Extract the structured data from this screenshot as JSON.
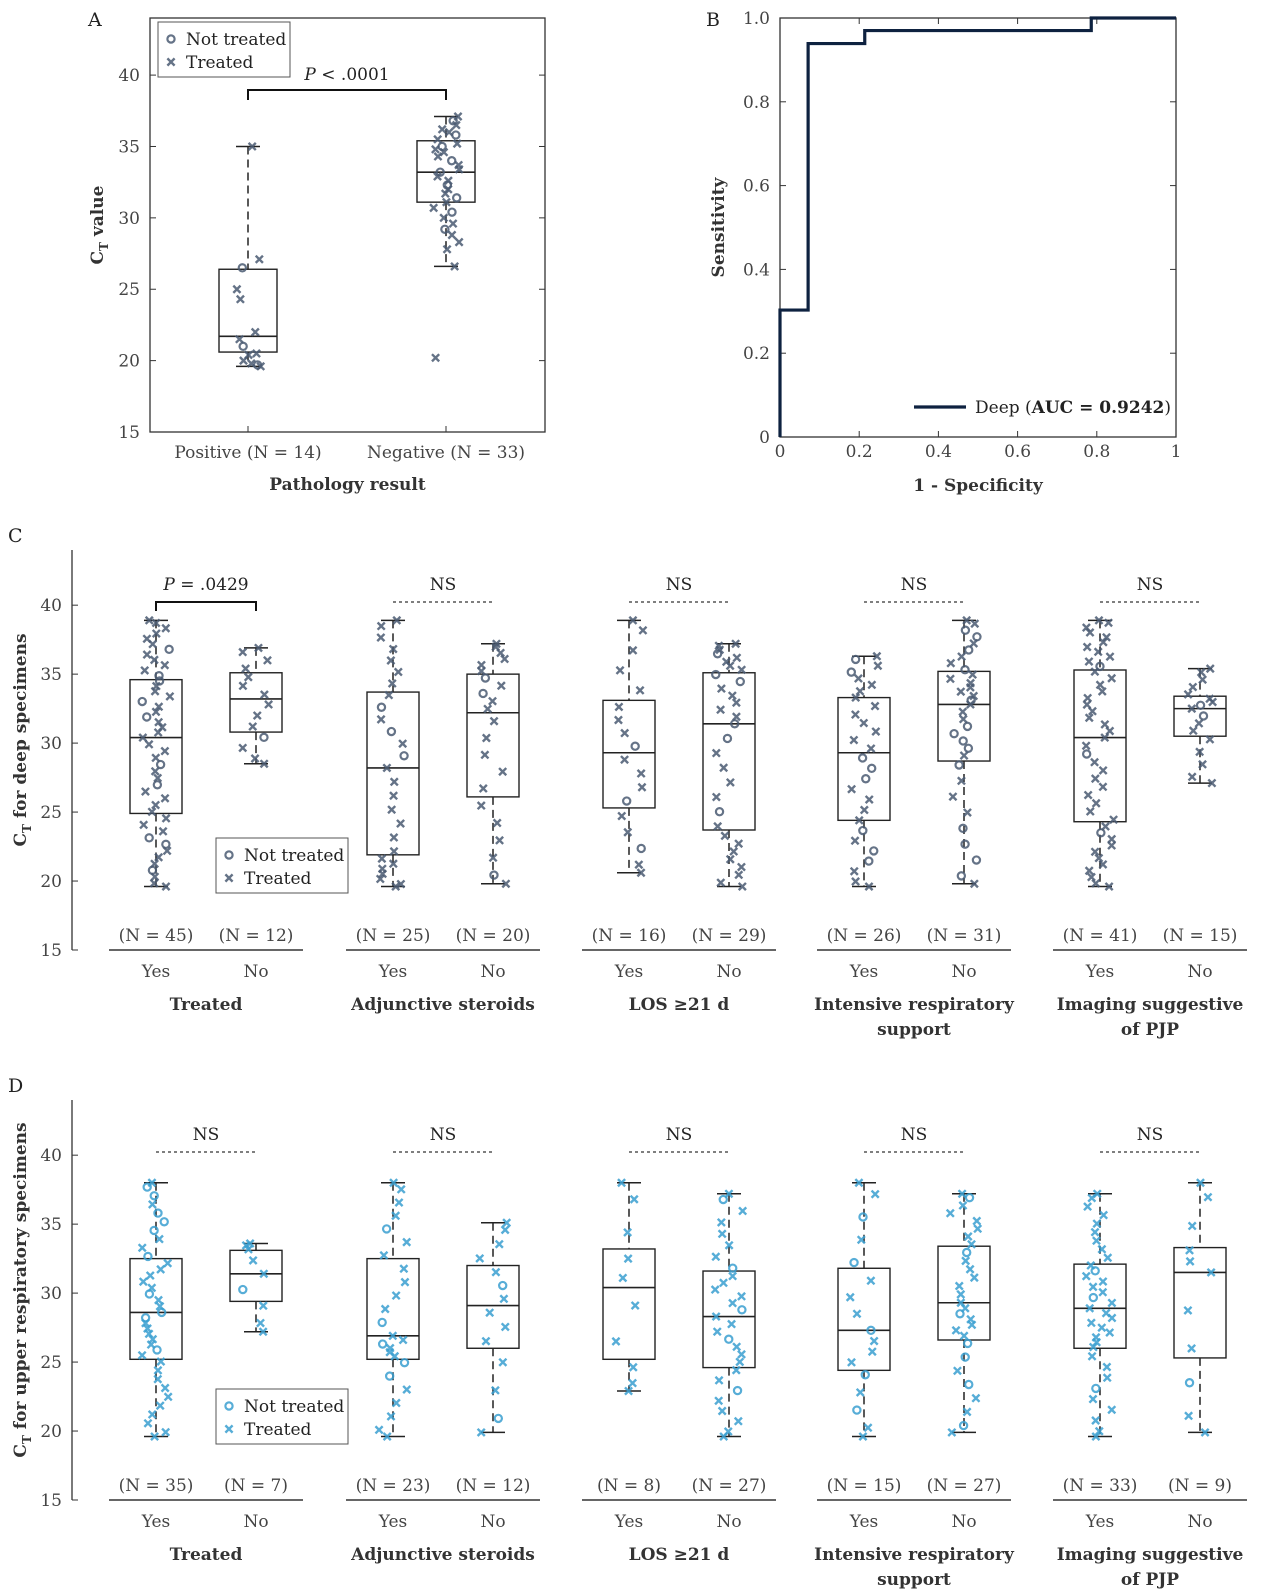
{
  "colors": {
    "dark": "#2d3f5a",
    "marker_dark": "#4a5a72",
    "marker_blue": "#3a9fd0",
    "roc": "#0e2240",
    "axis": "#333333"
  },
  "legend": {
    "not_treated": "Not treated",
    "treated": "Treated"
  },
  "chart_data": [
    {
      "panel": "A",
      "type": "box",
      "ylabel_main": "C",
      "ylabel_sub": "T",
      "ylabel_rest": " value",
      "xlabel": "Pathology result",
      "ylim": [
        15,
        44
      ],
      "yticks": [
        15,
        20,
        25,
        30,
        35,
        40
      ],
      "categories": [
        "Positive (N = 14)",
        "Negative (N = 33)"
      ],
      "boxes": [
        {
          "min": 19.6,
          "q1": 20.6,
          "median": 21.7,
          "q3": 26.4,
          "max": 35.0,
          "points": [
            {
              "y": 35.0,
              "m": "x"
            },
            {
              "y": 27.1,
              "m": "x"
            },
            {
              "y": 26.5,
              "m": "o"
            },
            {
              "y": 25.0,
              "m": "x"
            },
            {
              "y": 24.3,
              "m": "x"
            },
            {
              "y": 22.0,
              "m": "x"
            },
            {
              "y": 21.5,
              "m": "x"
            },
            {
              "y": 21.0,
              "m": "o"
            },
            {
              "y": 20.5,
              "m": "x"
            },
            {
              "y": 20.0,
              "m": "x"
            },
            {
              "y": 19.8,
              "m": "x"
            },
            {
              "y": 19.7,
              "m": "o"
            },
            {
              "y": 19.6,
              "m": "x"
            },
            {
              "y": 20.4,
              "m": "x"
            }
          ]
        },
        {
          "min": 26.6,
          "q1": 31.1,
          "median": 33.2,
          "q3": 35.4,
          "max": 37.1,
          "outliers": [
            20.2
          ],
          "points": [
            {
              "y": 37.1,
              "m": "x"
            },
            {
              "y": 36.8,
              "m": "o"
            },
            {
              "y": 36.5,
              "m": "x"
            },
            {
              "y": 36.0,
              "m": "x"
            },
            {
              "y": 35.8,
              "m": "o"
            },
            {
              "y": 35.5,
              "m": "x"
            },
            {
              "y": 35.2,
              "m": "x"
            },
            {
              "y": 35.0,
              "m": "o"
            },
            {
              "y": 34.6,
              "m": "x"
            },
            {
              "y": 34.3,
              "m": "x"
            },
            {
              "y": 34.0,
              "m": "o"
            },
            {
              "y": 33.7,
              "m": "x"
            },
            {
              "y": 33.4,
              "m": "x"
            },
            {
              "y": 33.2,
              "m": "o"
            },
            {
              "y": 32.9,
              "m": "x"
            },
            {
              "y": 32.6,
              "m": "x"
            },
            {
              "y": 32.3,
              "m": "o"
            },
            {
              "y": 32.0,
              "m": "x"
            },
            {
              "y": 31.7,
              "m": "x"
            },
            {
              "y": 31.4,
              "m": "o"
            },
            {
              "y": 31.1,
              "m": "x"
            },
            {
              "y": 30.7,
              "m": "x"
            },
            {
              "y": 30.4,
              "m": "o"
            },
            {
              "y": 30.0,
              "m": "x"
            },
            {
              "y": 29.6,
              "m": "x"
            },
            {
              "y": 29.2,
              "m": "o"
            },
            {
              "y": 28.8,
              "m": "x"
            },
            {
              "y": 28.3,
              "m": "x"
            },
            {
              "y": 27.8,
              "m": "x"
            },
            {
              "y": 26.6,
              "m": "x"
            },
            {
              "y": 20.2,
              "m": "x"
            },
            {
              "y": 36.2,
              "m": "x"
            },
            {
              "y": 34.8,
              "m": "x"
            }
          ]
        }
      ],
      "sig": {
        "label_italic": "P",
        "label_rest": " < .0001"
      }
    },
    {
      "panel": "B",
      "type": "line",
      "title_letter": "B",
      "xlabel": "1 - Specificity",
      "ylabel": "Sensitivity",
      "xlim": [
        0,
        1
      ],
      "ylim": [
        0,
        1
      ],
      "xticks": [
        0,
        0.2,
        0.4,
        0.6,
        0.8,
        1
      ],
      "xtick_labels": [
        "0",
        "0.2",
        "0.4",
        "0.6",
        "0.8",
        "1"
      ],
      "yticks": [
        0,
        0.2,
        0.4,
        0.6,
        0.8,
        1.0
      ],
      "ytick_labels": [
        "0",
        "0.2",
        "0.4",
        "0.6",
        "0.8",
        "1.0"
      ],
      "x": [
        0,
        0,
        0.071,
        0.071,
        0.214,
        0.214,
        0.786,
        0.786,
        1.0
      ],
      "y": [
        0,
        0.303,
        0.303,
        0.939,
        0.939,
        0.97,
        0.97,
        1.0,
        1.0
      ],
      "legend_name": "Deep",
      "legend_auc": "AUC = 0.9242"
    },
    {
      "panel": "C",
      "type": "box",
      "ylabel_main": "C",
      "ylabel_sub": "T",
      "ylabel_rest": " for deep specimens",
      "ylim": [
        15,
        44
      ],
      "yticks": [
        15,
        20,
        25,
        30,
        35,
        40
      ],
      "groups": [
        {
          "label": [
            "Treated"
          ],
          "sig": "P = .0429",
          "sig_italic": true,
          "boxes": [
            {
              "cat": "Yes",
              "n": "(N = 45)",
              "min": 19.6,
              "q1": 24.9,
              "median": 30.4,
              "q3": 34.6,
              "max": 38.9
            },
            {
              "cat": "No",
              "n": "(N = 12)",
              "min": 28.5,
              "q1": 30.8,
              "median": 33.2,
              "q3": 35.1,
              "max": 36.9
            }
          ]
        },
        {
          "label": [
            "Adjunctive steroids"
          ],
          "sig": "NS",
          "boxes": [
            {
              "cat": "Yes",
              "n": "(N = 25)",
              "min": 19.6,
              "q1": 21.9,
              "median": 28.2,
              "q3": 33.7,
              "max": 38.9
            },
            {
              "cat": "No",
              "n": "(N = 20)",
              "min": 19.8,
              "q1": 26.1,
              "median": 32.2,
              "q3": 35.0,
              "max": 37.2
            }
          ]
        },
        {
          "label": [
            "LOS ≥21 d"
          ],
          "sig": "NS",
          "boxes": [
            {
              "cat": "Yes",
              "n": "(N = 16)",
              "min": 20.6,
              "q1": 25.3,
              "median": 29.3,
              "q3": 33.1,
              "max": 38.9
            },
            {
              "cat": "No",
              "n": "(N = 29)",
              "min": 19.6,
              "q1": 23.7,
              "median": 31.4,
              "q3": 35.1,
              "max": 37.2
            }
          ]
        },
        {
          "label": [
            "Intensive respiratory",
            "support"
          ],
          "sig": "NS",
          "boxes": [
            {
              "cat": "Yes",
              "n": "(N = 26)",
              "min": 19.6,
              "q1": 24.4,
              "median": 29.3,
              "q3": 33.3,
              "max": 36.3
            },
            {
              "cat": "No",
              "n": "(N = 31)",
              "min": 19.8,
              "q1": 28.7,
              "median": 32.8,
              "q3": 35.2,
              "max": 38.9
            }
          ]
        },
        {
          "label": [
            "Imaging suggestive",
            "of PJP"
          ],
          "sig": "NS",
          "boxes": [
            {
              "cat": "Yes",
              "n": "(N = 41)",
              "min": 19.6,
              "q1": 24.3,
              "median": 30.4,
              "q3": 35.3,
              "max": 38.9
            },
            {
              "cat": "No",
              "n": "(N = 15)",
              "min": 27.1,
              "q1": 30.5,
              "median": 32.5,
              "q3": 33.4,
              "max": 35.4
            }
          ]
        }
      ]
    },
    {
      "panel": "D",
      "type": "box",
      "ylabel_main": "C",
      "ylabel_sub": "T",
      "ylabel_rest": "  for upper respiratory specimens",
      "ylim": [
        15,
        44
      ],
      "yticks": [
        15,
        20,
        25,
        30,
        35,
        40
      ],
      "groups": [
        {
          "label": [
            "Treated"
          ],
          "sig": "NS",
          "boxes": [
            {
              "cat": "Yes",
              "n": "(N = 35)",
              "min": 19.6,
              "q1": 25.2,
              "median": 28.6,
              "q3": 32.5,
              "max": 38.0
            },
            {
              "cat": "No",
              "n": "(N = 7)",
              "min": 27.2,
              "q1": 29.4,
              "median": 31.4,
              "q3": 33.1,
              "max": 33.6
            }
          ]
        },
        {
          "label": [
            "Adjunctive steroids"
          ],
          "sig": "NS",
          "boxes": [
            {
              "cat": "Yes",
              "n": "(N = 23)",
              "min": 19.6,
              "q1": 25.2,
              "median": 26.9,
              "q3": 32.5,
              "max": 38.0
            },
            {
              "cat": "No",
              "n": "(N = 12)",
              "min": 19.9,
              "q1": 26.0,
              "median": 29.1,
              "q3": 32.0,
              "max": 35.1
            }
          ]
        },
        {
          "label": [
            "LOS ≥21 d"
          ],
          "sig": "NS",
          "boxes": [
            {
              "cat": "Yes",
              "n": "(N = 8)",
              "min": 22.9,
              "q1": 25.2,
              "median": 30.4,
              "q3": 33.2,
              "max": 38.0
            },
            {
              "cat": "No",
              "n": "(N = 27)",
              "min": 19.6,
              "q1": 24.6,
              "median": 28.3,
              "q3": 31.6,
              "max": 37.2
            }
          ]
        },
        {
          "label": [
            "Intensive respiratory",
            "support"
          ],
          "sig": "NS",
          "boxes": [
            {
              "cat": "Yes",
              "n": "(N = 15)",
              "min": 19.6,
              "q1": 24.4,
              "median": 27.3,
              "q3": 31.8,
              "max": 38.0
            },
            {
              "cat": "No",
              "n": "(N = 27)",
              "min": 19.9,
              "q1": 26.6,
              "median": 29.3,
              "q3": 33.4,
              "max": 37.2
            }
          ]
        },
        {
          "label": [
            "Imaging suggestive",
            "of PJP"
          ],
          "sig": "NS",
          "boxes": [
            {
              "cat": "Yes",
              "n": "(N = 33)",
              "min": 19.6,
              "q1": 26.0,
              "median": 28.9,
              "q3": 32.1,
              "max": 37.2
            },
            {
              "cat": "No",
              "n": "(N = 9)",
              "min": 19.9,
              "q1": 25.3,
              "median": 31.5,
              "q3": 33.3,
              "max": 38.0
            }
          ]
        }
      ]
    }
  ]
}
